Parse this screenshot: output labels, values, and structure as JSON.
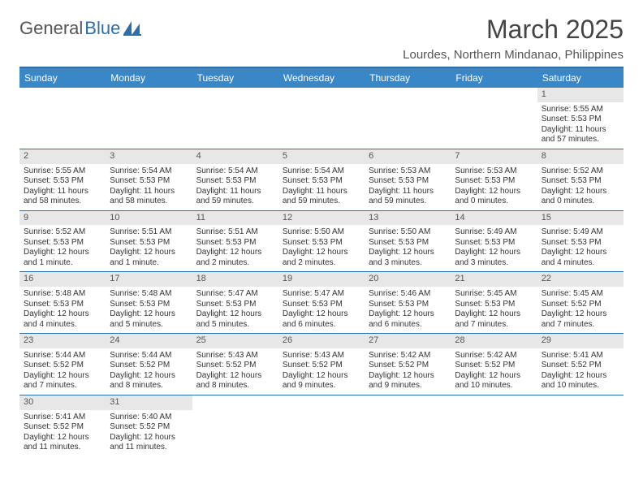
{
  "brand": {
    "name_a": "General",
    "name_b": "Blue"
  },
  "title": "March 2025",
  "location": "Lourdes, Northern Mindanao, Philippines",
  "colors": {
    "header_bar": "#3a87c8",
    "rule": "#2f6fa7",
    "daynum_bg": "#e7e7e7",
    "text": "#333333"
  },
  "weekdays": [
    "Sunday",
    "Monday",
    "Tuesday",
    "Wednesday",
    "Thursday",
    "Friday",
    "Saturday"
  ],
  "weeks": [
    [
      {
        "n": "",
        "sr": "",
        "ss": "",
        "dl": ""
      },
      {
        "n": "",
        "sr": "",
        "ss": "",
        "dl": ""
      },
      {
        "n": "",
        "sr": "",
        "ss": "",
        "dl": ""
      },
      {
        "n": "",
        "sr": "",
        "ss": "",
        "dl": ""
      },
      {
        "n": "",
        "sr": "",
        "ss": "",
        "dl": ""
      },
      {
        "n": "",
        "sr": "",
        "ss": "",
        "dl": ""
      },
      {
        "n": "1",
        "sr": "Sunrise: 5:55 AM",
        "ss": "Sunset: 5:53 PM",
        "dl": "Daylight: 11 hours and 57 minutes."
      }
    ],
    [
      {
        "n": "2",
        "sr": "Sunrise: 5:55 AM",
        "ss": "Sunset: 5:53 PM",
        "dl": "Daylight: 11 hours and 58 minutes."
      },
      {
        "n": "3",
        "sr": "Sunrise: 5:54 AM",
        "ss": "Sunset: 5:53 PM",
        "dl": "Daylight: 11 hours and 58 minutes."
      },
      {
        "n": "4",
        "sr": "Sunrise: 5:54 AM",
        "ss": "Sunset: 5:53 PM",
        "dl": "Daylight: 11 hours and 59 minutes."
      },
      {
        "n": "5",
        "sr": "Sunrise: 5:54 AM",
        "ss": "Sunset: 5:53 PM",
        "dl": "Daylight: 11 hours and 59 minutes."
      },
      {
        "n": "6",
        "sr": "Sunrise: 5:53 AM",
        "ss": "Sunset: 5:53 PM",
        "dl": "Daylight: 11 hours and 59 minutes."
      },
      {
        "n": "7",
        "sr": "Sunrise: 5:53 AM",
        "ss": "Sunset: 5:53 PM",
        "dl": "Daylight: 12 hours and 0 minutes."
      },
      {
        "n": "8",
        "sr": "Sunrise: 5:52 AM",
        "ss": "Sunset: 5:53 PM",
        "dl": "Daylight: 12 hours and 0 minutes."
      }
    ],
    [
      {
        "n": "9",
        "sr": "Sunrise: 5:52 AM",
        "ss": "Sunset: 5:53 PM",
        "dl": "Daylight: 12 hours and 1 minute."
      },
      {
        "n": "10",
        "sr": "Sunrise: 5:51 AM",
        "ss": "Sunset: 5:53 PM",
        "dl": "Daylight: 12 hours and 1 minute."
      },
      {
        "n": "11",
        "sr": "Sunrise: 5:51 AM",
        "ss": "Sunset: 5:53 PM",
        "dl": "Daylight: 12 hours and 2 minutes."
      },
      {
        "n": "12",
        "sr": "Sunrise: 5:50 AM",
        "ss": "Sunset: 5:53 PM",
        "dl": "Daylight: 12 hours and 2 minutes."
      },
      {
        "n": "13",
        "sr": "Sunrise: 5:50 AM",
        "ss": "Sunset: 5:53 PM",
        "dl": "Daylight: 12 hours and 3 minutes."
      },
      {
        "n": "14",
        "sr": "Sunrise: 5:49 AM",
        "ss": "Sunset: 5:53 PM",
        "dl": "Daylight: 12 hours and 3 minutes."
      },
      {
        "n": "15",
        "sr": "Sunrise: 5:49 AM",
        "ss": "Sunset: 5:53 PM",
        "dl": "Daylight: 12 hours and 4 minutes."
      }
    ],
    [
      {
        "n": "16",
        "sr": "Sunrise: 5:48 AM",
        "ss": "Sunset: 5:53 PM",
        "dl": "Daylight: 12 hours and 4 minutes."
      },
      {
        "n": "17",
        "sr": "Sunrise: 5:48 AM",
        "ss": "Sunset: 5:53 PM",
        "dl": "Daylight: 12 hours and 5 minutes."
      },
      {
        "n": "18",
        "sr": "Sunrise: 5:47 AM",
        "ss": "Sunset: 5:53 PM",
        "dl": "Daylight: 12 hours and 5 minutes."
      },
      {
        "n": "19",
        "sr": "Sunrise: 5:47 AM",
        "ss": "Sunset: 5:53 PM",
        "dl": "Daylight: 12 hours and 6 minutes."
      },
      {
        "n": "20",
        "sr": "Sunrise: 5:46 AM",
        "ss": "Sunset: 5:53 PM",
        "dl": "Daylight: 12 hours and 6 minutes."
      },
      {
        "n": "21",
        "sr": "Sunrise: 5:45 AM",
        "ss": "Sunset: 5:53 PM",
        "dl": "Daylight: 12 hours and 7 minutes."
      },
      {
        "n": "22",
        "sr": "Sunrise: 5:45 AM",
        "ss": "Sunset: 5:52 PM",
        "dl": "Daylight: 12 hours and 7 minutes."
      }
    ],
    [
      {
        "n": "23",
        "sr": "Sunrise: 5:44 AM",
        "ss": "Sunset: 5:52 PM",
        "dl": "Daylight: 12 hours and 7 minutes."
      },
      {
        "n": "24",
        "sr": "Sunrise: 5:44 AM",
        "ss": "Sunset: 5:52 PM",
        "dl": "Daylight: 12 hours and 8 minutes."
      },
      {
        "n": "25",
        "sr": "Sunrise: 5:43 AM",
        "ss": "Sunset: 5:52 PM",
        "dl": "Daylight: 12 hours and 8 minutes."
      },
      {
        "n": "26",
        "sr": "Sunrise: 5:43 AM",
        "ss": "Sunset: 5:52 PM",
        "dl": "Daylight: 12 hours and 9 minutes."
      },
      {
        "n": "27",
        "sr": "Sunrise: 5:42 AM",
        "ss": "Sunset: 5:52 PM",
        "dl": "Daylight: 12 hours and 9 minutes."
      },
      {
        "n": "28",
        "sr": "Sunrise: 5:42 AM",
        "ss": "Sunset: 5:52 PM",
        "dl": "Daylight: 12 hours and 10 minutes."
      },
      {
        "n": "29",
        "sr": "Sunrise: 5:41 AM",
        "ss": "Sunset: 5:52 PM",
        "dl": "Daylight: 12 hours and 10 minutes."
      }
    ],
    [
      {
        "n": "30",
        "sr": "Sunrise: 5:41 AM",
        "ss": "Sunset: 5:52 PM",
        "dl": "Daylight: 12 hours and 11 minutes."
      },
      {
        "n": "31",
        "sr": "Sunrise: 5:40 AM",
        "ss": "Sunset: 5:52 PM",
        "dl": "Daylight: 12 hours and 11 minutes."
      },
      {
        "n": "",
        "sr": "",
        "ss": "",
        "dl": ""
      },
      {
        "n": "",
        "sr": "",
        "ss": "",
        "dl": ""
      },
      {
        "n": "",
        "sr": "",
        "ss": "",
        "dl": ""
      },
      {
        "n": "",
        "sr": "",
        "ss": "",
        "dl": ""
      },
      {
        "n": "",
        "sr": "",
        "ss": "",
        "dl": ""
      }
    ]
  ]
}
